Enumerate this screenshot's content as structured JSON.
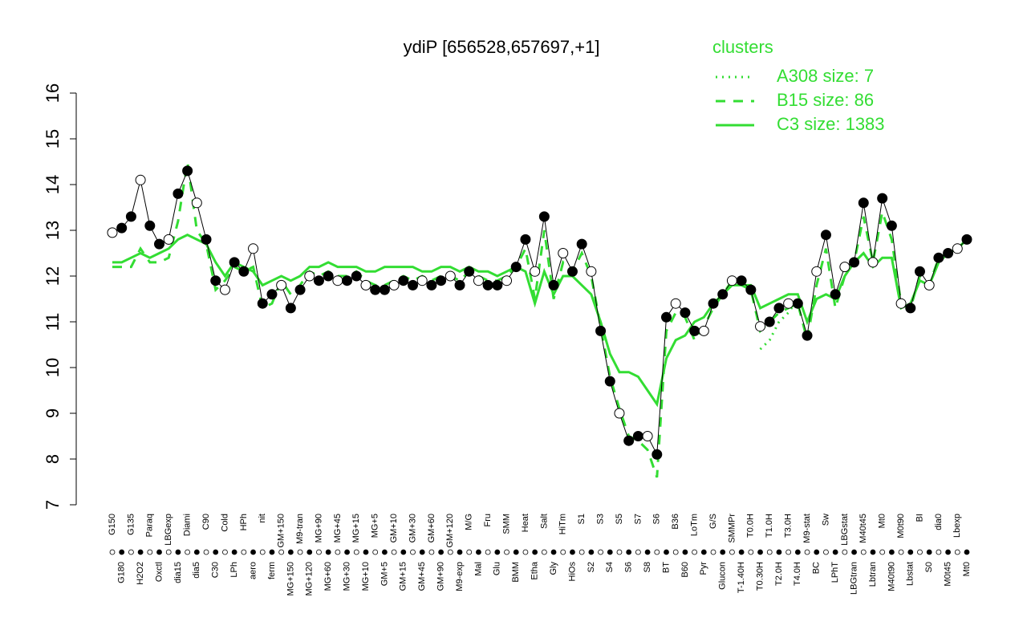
{
  "chart_data": {
    "type": "line",
    "title": "ydiP [656528,657697,+1]",
    "categories": [
      "G150",
      "G180",
      "G135",
      "H2O2",
      "Paraq",
      "Oxctl",
      "LBGexp",
      "dia15",
      "Diami",
      "dia5",
      "C90",
      "C30",
      "Cold",
      "LPh",
      "HPh",
      "aero",
      "nit",
      "ferm",
      "GM+150",
      "MG+150",
      "M9-tran",
      "MG+120",
      "MG+90",
      "MG+60",
      "MG+45",
      "MG+30",
      "MG+15",
      "MG+10",
      "MG+5",
      "GM+5",
      "GM+10",
      "GM+15",
      "GM+30",
      "GM+45",
      "GM+60",
      "GM+90",
      "GM+120",
      "M9-exp",
      "M/G",
      "Mal",
      "Fru",
      "Glu",
      "SMM",
      "BMM",
      "Heat",
      "Etha",
      "Salt",
      "Gly",
      "HiTm",
      "HiOs",
      "S1",
      "S2",
      "S3",
      "S4",
      "S5",
      "S6",
      "S7",
      "S8",
      "S6",
      "BT",
      "B36",
      "B60",
      "LoTm",
      "Pyr",
      "G/S",
      "Glucon",
      "SMMPr",
      "T-1.40H",
      "T0.0H",
      "T0.30H",
      "T1.0H",
      "T2.0H",
      "T3.0H",
      "T4.0H",
      "M9-stat",
      "BC",
      "Sw",
      "LPhT",
      "LBGstat",
      "LBGtran",
      "M40t45",
      "Lbtran",
      "Mt0",
      "M40t90",
      "M0t90",
      "Lbstat",
      "BI",
      "S0",
      "dia0",
      "M0t45",
      "Lbexp",
      "Mt0"
    ],
    "values": [
      12.95,
      13.05,
      13.3,
      14.1,
      13.1,
      12.7,
      12.8,
      13.8,
      14.3,
      13.6,
      12.8,
      11.9,
      11.7,
      12.3,
      12.1,
      12.6,
      11.4,
      11.6,
      11.8,
      11.3,
      11.7,
      12.0,
      11.9,
      12.0,
      11.9,
      11.9,
      12.0,
      11.8,
      11.7,
      11.7,
      11.8,
      11.9,
      11.8,
      11.9,
      11.8,
      11.9,
      12.0,
      11.8,
      12.1,
      11.9,
      11.8,
      11.8,
      11.9,
      12.2,
      12.8,
      12.1,
      13.3,
      11.8,
      12.5,
      12.1,
      12.7,
      12.1,
      10.8,
      9.7,
      9.0,
      8.4,
      8.5,
      8.5,
      8.1,
      11.1,
      11.4,
      11.2,
      10.8,
      10.8,
      11.4,
      11.6,
      11.9,
      11.9,
      11.7,
      10.9,
      11.0,
      11.3,
      11.4,
      11.4,
      10.7,
      12.1,
      12.9,
      11.6,
      12.2,
      12.3,
      13.6,
      12.3,
      13.7,
      13.1,
      11.4,
      11.3,
      12.1,
      11.8,
      12.4,
      12.5,
      12.6,
      12.8
    ],
    "color": "#000000",
    "legend_title": "clusters",
    "series": [
      {
        "name": "A308 size: 7",
        "color": "#33dd33",
        "style": "dotted",
        "values": [
          null,
          null,
          null,
          null,
          null,
          null,
          null,
          null,
          null,
          null,
          null,
          null,
          null,
          null,
          null,
          null,
          null,
          null,
          null,
          null,
          null,
          null,
          null,
          null,
          null,
          null,
          null,
          null,
          null,
          null,
          null,
          null,
          null,
          null,
          null,
          null,
          null,
          null,
          null,
          null,
          null,
          null,
          null,
          null,
          null,
          null,
          null,
          null,
          null,
          null,
          null,
          null,
          null,
          null,
          null,
          null,
          null,
          null,
          null,
          null,
          null,
          null,
          null,
          null,
          null,
          null,
          null,
          null,
          null,
          10.4,
          10.6,
          11.0,
          11.2,
          11.5,
          null,
          null,
          null,
          null,
          null,
          null,
          null,
          null,
          null,
          null,
          null,
          null,
          null,
          null,
          null,
          null,
          null,
          null
        ]
      },
      {
        "name": "B15 size: 86",
        "color": "#33dd33",
        "style": "dashed",
        "values": [
          12.2,
          12.2,
          12.2,
          12.6,
          12.3,
          12.3,
          12.4,
          13.2,
          14.5,
          13.0,
          12.7,
          11.7,
          11.9,
          12.2,
          12.1,
          12.2,
          11.3,
          11.4,
          11.9,
          11.6,
          11.8,
          12.1,
          12.0,
          12.1,
          12.0,
          12.0,
          12.1,
          11.9,
          11.8,
          11.8,
          11.9,
          12.0,
          11.9,
          12.0,
          11.9,
          12.0,
          12.0,
          11.9,
          12.1,
          12.0,
          11.9,
          11.9,
          12.0,
          12.2,
          12.6,
          11.5,
          13.0,
          11.5,
          12.3,
          12.1,
          12.5,
          12.0,
          10.9,
          9.8,
          9.1,
          8.5,
          8.4,
          8.2,
          7.6,
          10.8,
          11.2,
          11.1,
          10.6,
          10.9,
          11.3,
          11.6,
          11.9,
          11.8,
          11.7,
          10.8,
          11.0,
          11.2,
          11.3,
          11.4,
          10.6,
          11.8,
          12.6,
          11.3,
          12.0,
          12.3,
          13.3,
          12.3,
          13.4,
          12.8,
          11.4,
          11.3,
          12.0,
          11.8,
          12.4,
          12.5,
          12.6,
          12.8
        ]
      },
      {
        "name": "C3 size: 1383",
        "color": "#33dd33",
        "style": "solid",
        "values": [
          12.3,
          12.3,
          12.4,
          12.5,
          12.4,
          12.5,
          12.6,
          12.8,
          12.9,
          12.8,
          12.7,
          12.3,
          12.0,
          12.3,
          12.2,
          12.1,
          11.8,
          11.9,
          12.0,
          11.9,
          12.0,
          12.2,
          12.2,
          12.3,
          12.2,
          12.2,
          12.2,
          12.1,
          12.1,
          12.2,
          12.2,
          12.2,
          12.2,
          12.1,
          12.1,
          12.2,
          12.2,
          12.1,
          12.2,
          12.1,
          12.1,
          12.0,
          12.1,
          12.2,
          12.1,
          11.4,
          12.1,
          11.6,
          12.0,
          12.0,
          11.8,
          11.6,
          11.0,
          10.3,
          9.9,
          9.9,
          9.8,
          9.5,
          9.2,
          10.2,
          10.6,
          10.7,
          11.0,
          11.1,
          11.4,
          11.6,
          11.8,
          11.8,
          11.8,
          11.3,
          11.4,
          11.5,
          11.6,
          11.6,
          11.0,
          11.5,
          11.6,
          11.5,
          12.0,
          12.3,
          12.5,
          12.2,
          12.4,
          12.4,
          11.3,
          11.4,
          11.9,
          11.8,
          12.3,
          12.5,
          12.6,
          12.8
        ]
      }
    ],
    "ylim": [
      7,
      16
    ],
    "yticks": [
      7,
      8,
      9,
      10,
      11,
      12,
      13,
      14,
      15,
      16
    ],
    "grid": false,
    "legend_position": "top-right"
  }
}
